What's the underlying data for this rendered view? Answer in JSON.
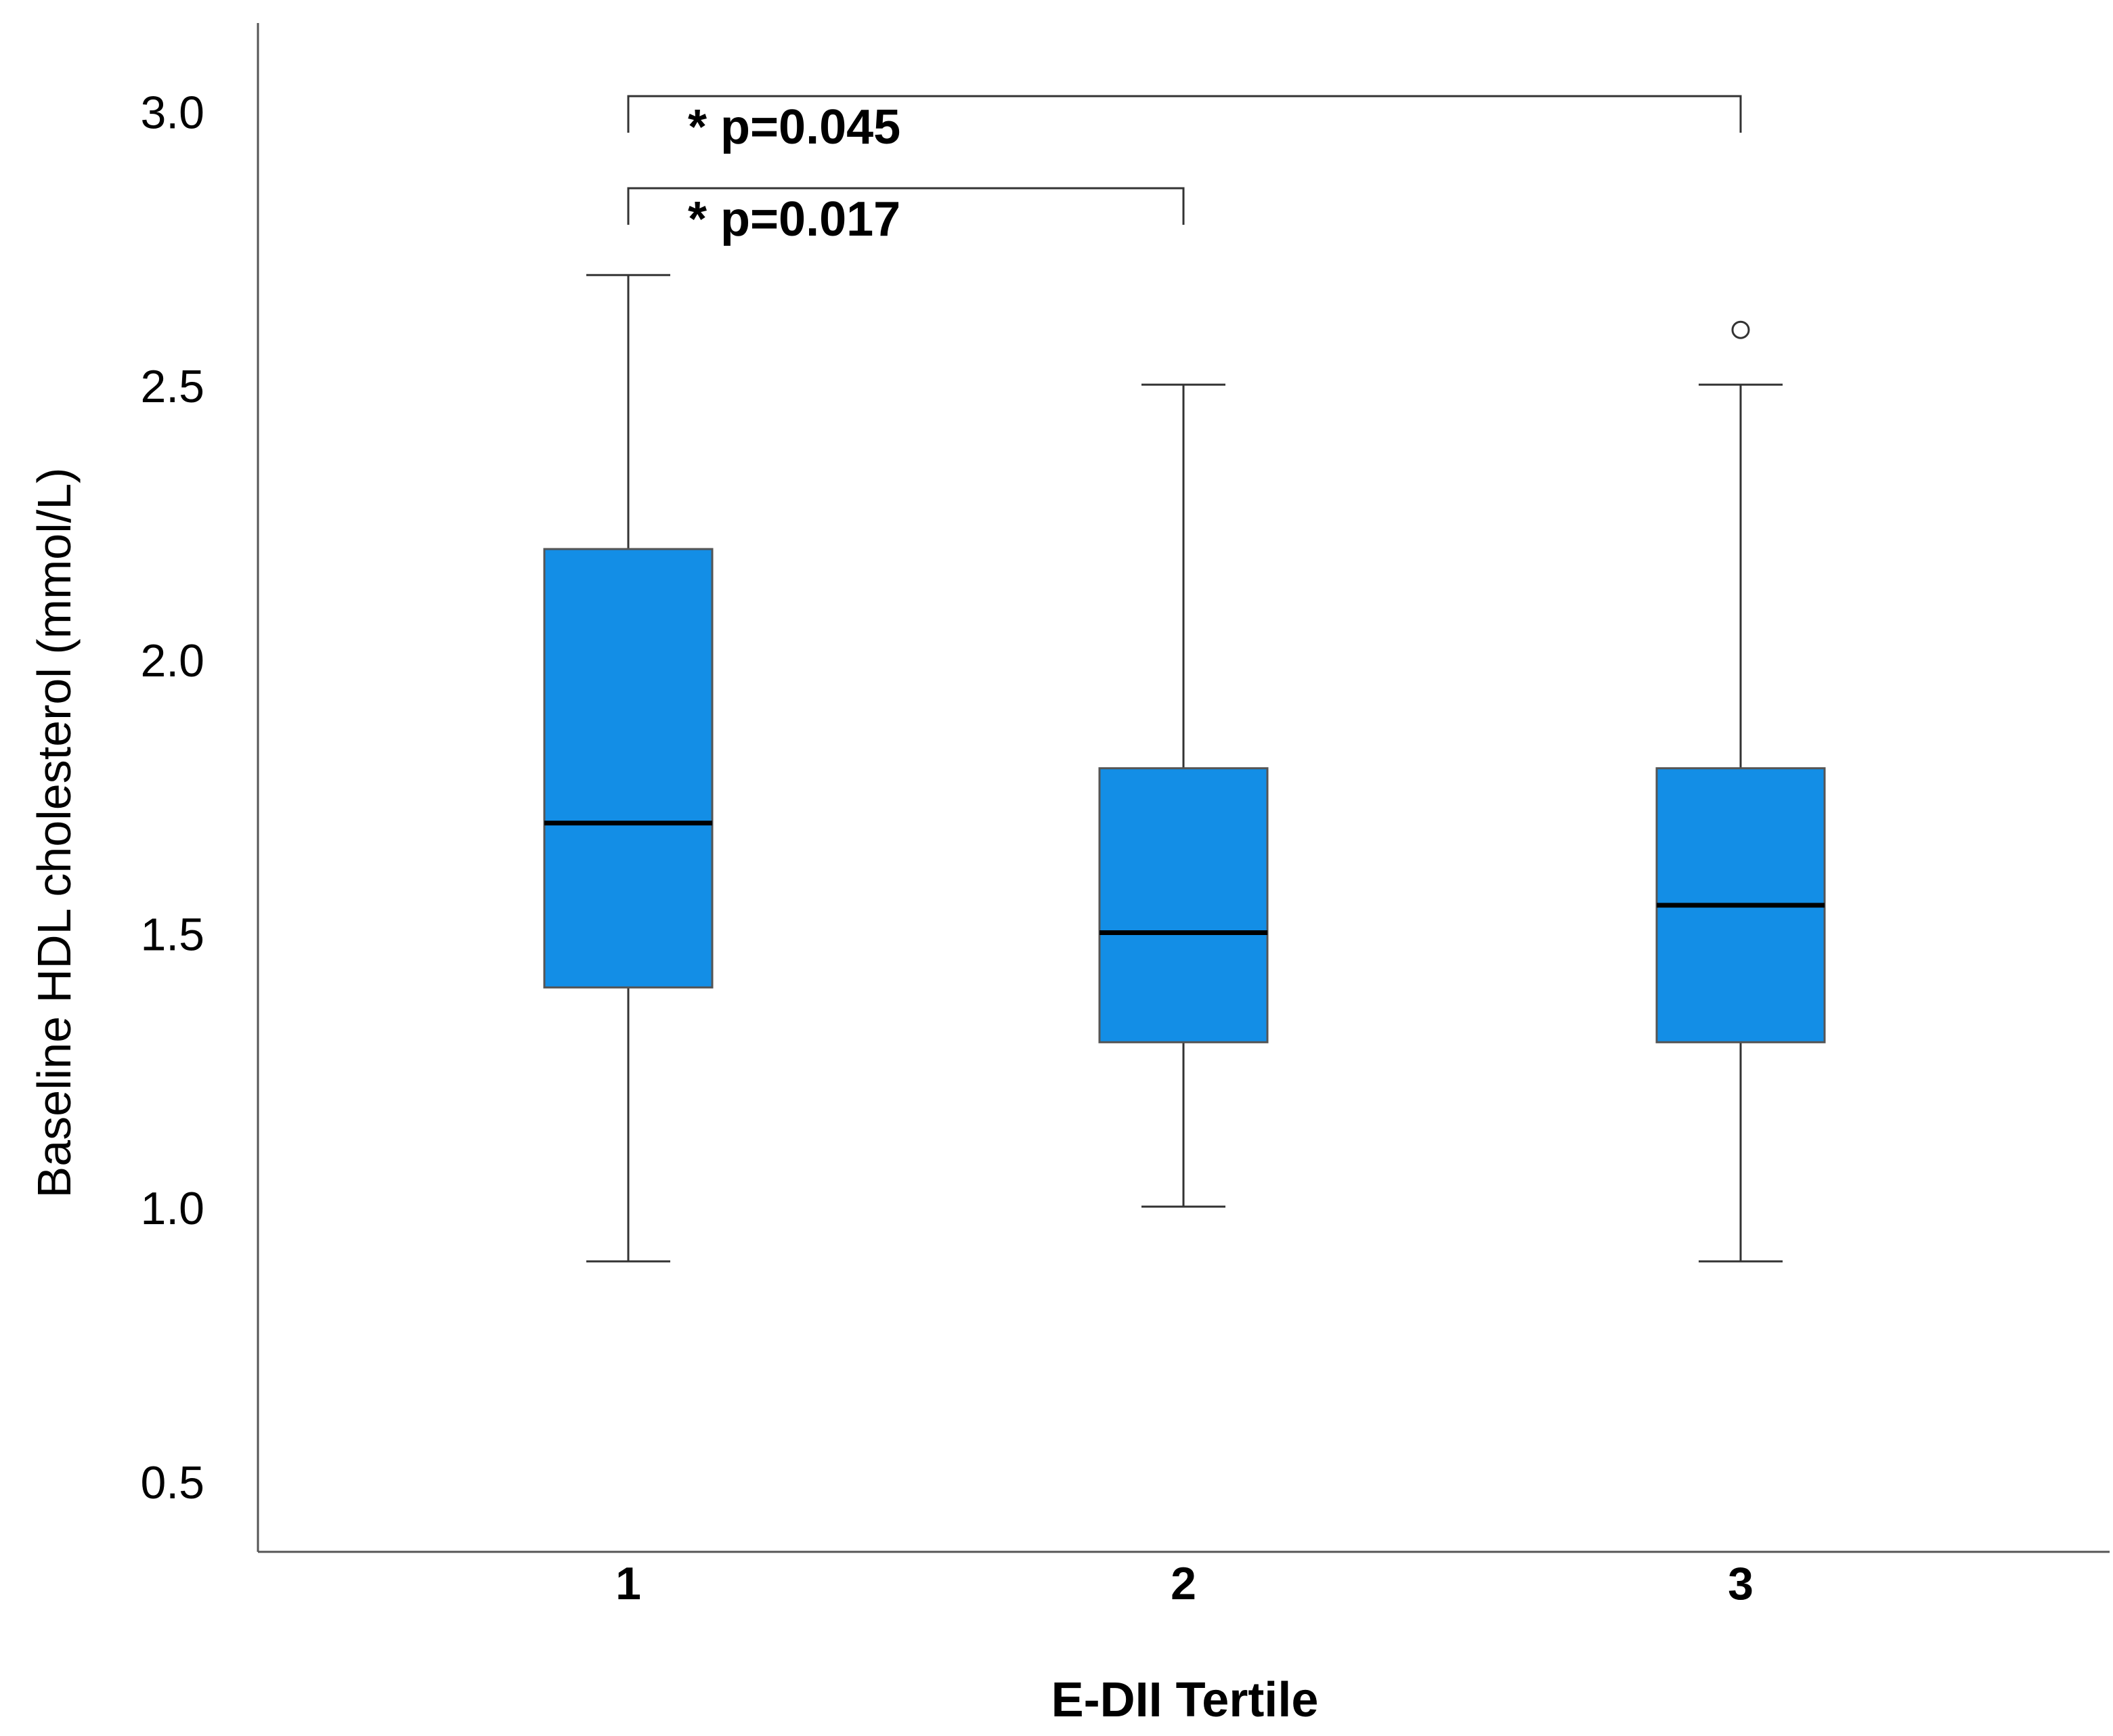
{
  "chart_data": {
    "type": "box",
    "xlabel": "E-DII Tertile",
    "ylabel": "Baseline HDL cholesterol (mmol/L)",
    "ylim": [
      0.38,
      3.17
    ],
    "yticks": [
      "0.5",
      "1.0",
      "1.5",
      "2.0",
      "2.5",
      "3.0"
    ],
    "categories": [
      "1",
      "2",
      "3"
    ],
    "box_color": "#138ee6",
    "boxes": [
      {
        "category": "1",
        "whisker_low": 0.91,
        "q1": 1.41,
        "median": 1.71,
        "q3": 2.21,
        "whisker_high": 2.71,
        "outliers": []
      },
      {
        "category": "2",
        "whisker_low": 1.01,
        "q1": 1.31,
        "median": 1.51,
        "q3": 1.81,
        "whisker_high": 2.51,
        "outliers": []
      },
      {
        "category": "3",
        "whisker_low": 0.91,
        "q1": 1.31,
        "median": 1.56,
        "q3": 1.81,
        "whisker_high": 2.51,
        "outliers": [
          2.61
        ]
      }
    ],
    "annotations": [
      {
        "from": "1",
        "to": "3",
        "label": "* p=0.045"
      },
      {
        "from": "1",
        "to": "2",
        "label": "* p=0.017"
      }
    ],
    "grid": false,
    "legend": "none"
  }
}
